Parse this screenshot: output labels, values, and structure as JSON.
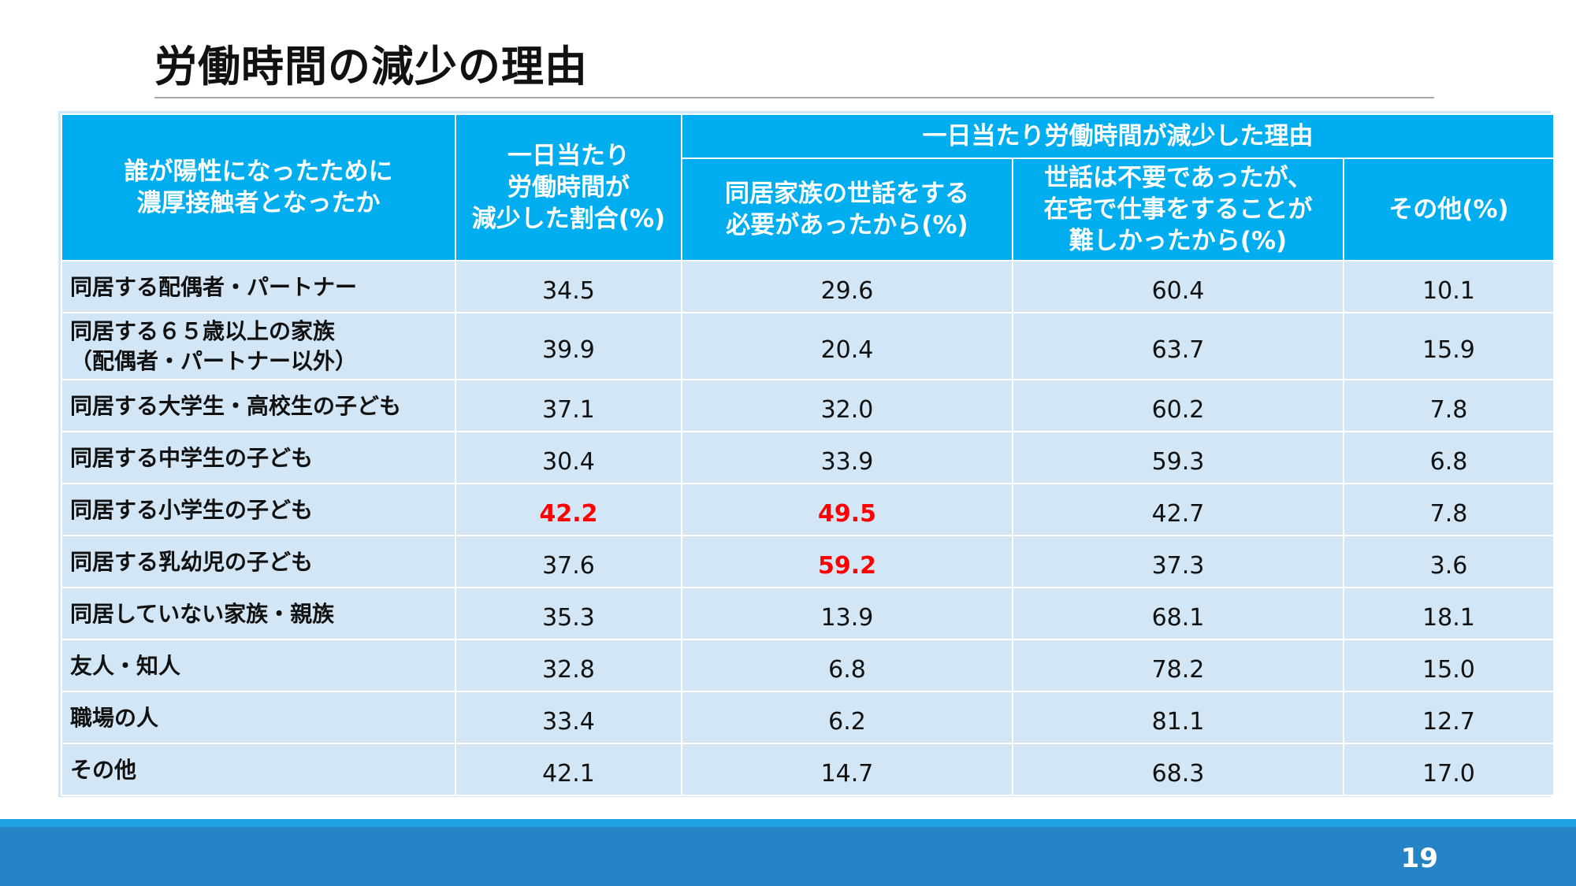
{
  "title": "労働時間の減少の理由",
  "page_number": "19",
  "table": {
    "header": {
      "col1": [
        "誰が陽性になったために",
        "濃厚接触者となったか"
      ],
      "col2": [
        "一日当たり",
        "労働時間が",
        "減少した割合(%)"
      ],
      "group": "一日当たり労働時間が減少した理由",
      "col3": [
        "同居家族の世話をする",
        "必要があったから(%)"
      ],
      "col4": [
        "世話は不要であったが、",
        "在宅で仕事をすることが",
        "難しかったから(%)"
      ],
      "col5": [
        "その他(%)"
      ]
    },
    "rows": [
      {
        "label": [
          "同居する配偶者・パートナー"
        ],
        "values": [
          "34.5",
          "29.6",
          "60.4",
          "10.1"
        ],
        "highlight": [
          false,
          false,
          false,
          false
        ]
      },
      {
        "label": [
          "同居する６５歳以上の家族",
          "（配偶者・パートナー以外）"
        ],
        "values": [
          "39.9",
          "20.4",
          "63.7",
          "15.9"
        ],
        "highlight": [
          false,
          false,
          false,
          false
        ]
      },
      {
        "label": [
          "同居する大学生・高校生の子ども"
        ],
        "values": [
          "37.1",
          "32.0",
          "60.2",
          "7.8"
        ],
        "highlight": [
          false,
          false,
          false,
          false
        ]
      },
      {
        "label": [
          "同居する中学生の子ども"
        ],
        "values": [
          "30.4",
          "33.9",
          "59.3",
          "6.8"
        ],
        "highlight": [
          false,
          false,
          false,
          false
        ]
      },
      {
        "label": [
          "同居する小学生の子ども"
        ],
        "values": [
          "42.2",
          "49.5",
          "42.7",
          "7.8"
        ],
        "highlight": [
          true,
          true,
          false,
          false
        ]
      },
      {
        "label": [
          "同居する乳幼児の子ども"
        ],
        "values": [
          "37.6",
          "59.2",
          "37.3",
          "3.6"
        ],
        "highlight": [
          false,
          true,
          false,
          false
        ]
      },
      {
        "label": [
          "同居していない家族・親族"
        ],
        "values": [
          "35.3",
          "13.9",
          "68.1",
          "18.1"
        ],
        "highlight": [
          false,
          false,
          false,
          false
        ]
      },
      {
        "label": [
          "友人・知人"
        ],
        "values": [
          "32.8",
          "6.8",
          "78.2",
          "15.0"
        ],
        "highlight": [
          false,
          false,
          false,
          false
        ]
      },
      {
        "label": [
          "職場の人"
        ],
        "values": [
          "33.4",
          "6.2",
          "81.1",
          "12.7"
        ],
        "highlight": [
          false,
          false,
          false,
          false
        ]
      },
      {
        "label": [
          "その他"
        ],
        "values": [
          "42.1",
          "14.7",
          "68.3",
          "17.0"
        ],
        "highlight": [
          false,
          false,
          false,
          false
        ]
      }
    ]
  },
  "colors": {
    "header_bg": "#00aeef",
    "cell_bg": "#d2e6f5",
    "highlight": "#ff0000",
    "footer": "#2683c6"
  }
}
